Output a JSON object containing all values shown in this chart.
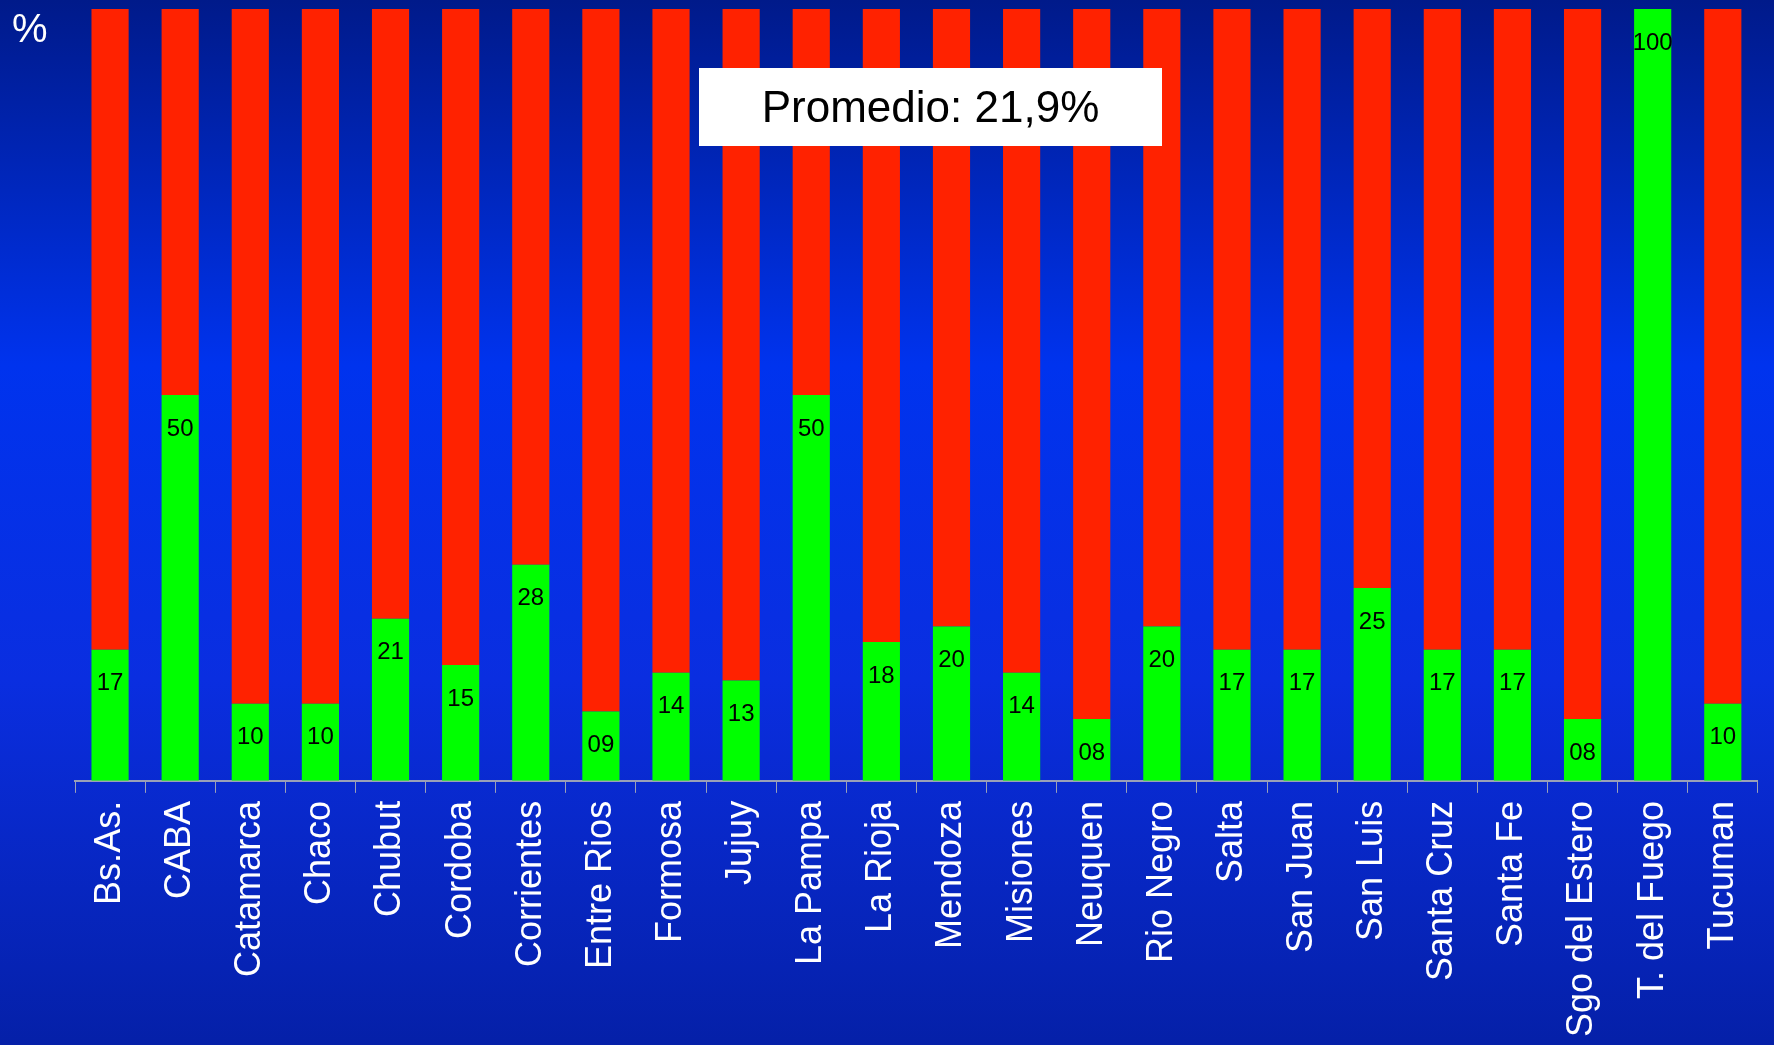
{
  "chart_data": {
    "type": "bar",
    "stacked": true,
    "ylabel": "%",
    "annotations": [
      "Promedio: 21,9%"
    ],
    "categories": [
      "Bs.As.",
      "CABA",
      "Catamarca",
      "Chaco",
      "Chubut",
      "Cordoba",
      "Corrientes",
      "Entre Rios",
      "Formosa",
      "Jujuy",
      "La Pampa",
      "La Rioja",
      "Mendoza",
      "Misiones",
      "Neuquen",
      "Rio Negro",
      "Salta",
      "San Juan",
      "San Luis",
      "Santa Cruz",
      "Santa Fe",
      "Sgo del Estero",
      "T. del Fuego",
      "Tucuman"
    ],
    "series": [
      {
        "color": "#00ff00",
        "values": [
          17,
          50,
          10,
          10,
          21,
          15,
          28,
          9,
          14,
          13,
          50,
          18,
          20,
          14,
          8,
          20,
          17,
          17,
          25,
          17,
          17,
          8,
          100,
          10
        ],
        "value_labels": [
          "17",
          "50",
          "10",
          "10",
          "21",
          "15",
          "28",
          "09",
          "14",
          "13",
          "50",
          "18",
          "20",
          "14",
          "08",
          "20",
          "17",
          "17",
          "25",
          "17",
          "17",
          "08",
          "100",
          "10"
        ]
      },
      {
        "color": "#ff2200",
        "values": [
          83,
          50,
          90,
          90,
          79,
          85,
          72,
          91,
          86,
          87,
          50,
          82,
          80,
          86,
          92,
          80,
          83,
          83,
          75,
          83,
          83,
          92,
          0,
          90
        ]
      }
    ],
    "ylim": [
      0,
      100
    ],
    "tick_labels": "x",
    "legend": false,
    "grid": false
  }
}
